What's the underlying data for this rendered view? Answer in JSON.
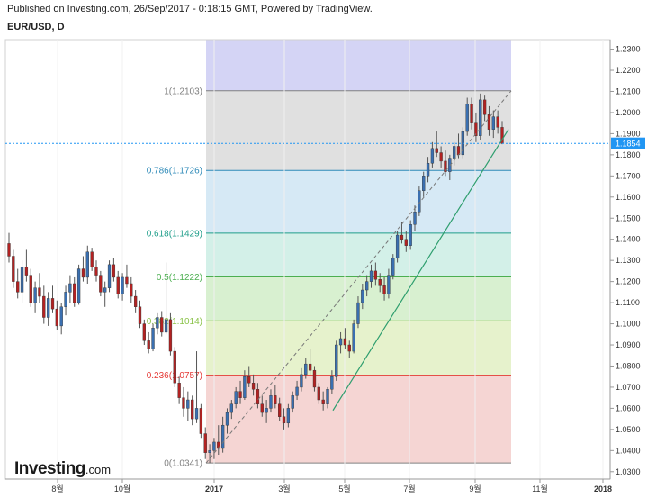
{
  "header": {
    "published": "Published on Investing.com, 26/Sep/2017 - 0:18:15 GMT, Powered by TradingView.",
    "symbol": "EUR/USD, D"
  },
  "logo": {
    "brand": "Investing",
    "suffix": ".com"
  },
  "chart_data": {
    "type": "candlestick",
    "ylim": [
      1.0265,
      1.2345
    ],
    "y_ticks": [
      "1.2300",
      "1.2200",
      "1.2100",
      "1.2000",
      "1.1900",
      "1.1800",
      "1.1700",
      "1.1600",
      "1.1500",
      "1.1400",
      "1.1300",
      "1.1200",
      "1.1100",
      "1.1000",
      "1.0900",
      "1.0800",
      "1.0700",
      "1.0600",
      "1.0500",
      "1.0400",
      "1.0300"
    ],
    "x_ticks": [
      "8월",
      "10월",
      "2017",
      "3월",
      "5월",
      "7월",
      "9월",
      "11월",
      "2018"
    ],
    "current_price": {
      "value": 1.1854,
      "label": "1.1854",
      "color": "#2196f3"
    },
    "fibonacci": {
      "levels": [
        {
          "ratio": "1",
          "price": 1.2103,
          "label": "1(1.2103)",
          "color": "#808080",
          "fill": "#e0e0e0"
        },
        {
          "ratio": "0.786",
          "price": 1.1726,
          "label": "0.786(1.1726)",
          "color": "#2e8ab8",
          "fill": "#d6e9f5"
        },
        {
          "ratio": "0.618",
          "price": 1.1429,
          "label": "0.618(1.1429)",
          "color": "#1f9e8a",
          "fill": "#d3f0e8"
        },
        {
          "ratio": "0.5",
          "price": 1.1222,
          "label": "0.5(1.1222)",
          "color": "#4caf50",
          "fill": "#d8f0d0"
        },
        {
          "ratio": "0.382",
          "price": 1.1014,
          "label": "0.382(1.1014)",
          "color": "#8bc34a",
          "fill": "#e6f2cc"
        },
        {
          "ratio": "0.236",
          "price": 1.0757,
          "label": "0.236(1.0757)",
          "color": "#e53935",
          "fill": "#f5d5d3"
        },
        {
          "ratio": "0",
          "price": 1.0341,
          "label": "0(1.0341)",
          "color": "#808080",
          "fill": ""
        }
      ],
      "extension_fill": "#d4d4f5"
    },
    "trendline": {
      "from": 1.059,
      "to": 1.192,
      "color": "#2e9e6e"
    },
    "fib_diagonal": {
      "from": 1.0341,
      "to": 1.2103,
      "color": "#777777"
    },
    "candles": [
      [
        1.138,
        1.143,
        1.129,
        1.132
      ],
      [
        1.132,
        1.135,
        1.117,
        1.12
      ],
      [
        1.12,
        1.126,
        1.112,
        1.115
      ],
      [
        1.115,
        1.13,
        1.11,
        1.127
      ],
      [
        1.127,
        1.135,
        1.12,
        1.123
      ],
      [
        1.123,
        1.126,
        1.108,
        1.11
      ],
      [
        1.11,
        1.12,
        1.105,
        1.117
      ],
      [
        1.117,
        1.124,
        1.11,
        1.113
      ],
      [
        1.113,
        1.118,
        1.1,
        1.103
      ],
      [
        1.103,
        1.115,
        1.099,
        1.112
      ],
      [
        1.112,
        1.118,
        1.105,
        1.107
      ],
      [
        1.107,
        1.111,
        1.097,
        1.099
      ],
      [
        1.099,
        1.11,
        1.095,
        1.108
      ],
      [
        1.108,
        1.118,
        1.104,
        1.115
      ],
      [
        1.115,
        1.123,
        1.11,
        1.119
      ],
      [
        1.119,
        1.122,
        1.108,
        1.11
      ],
      [
        1.11,
        1.128,
        1.109,
        1.126
      ],
      [
        1.126,
        1.132,
        1.12,
        1.122
      ],
      [
        1.122,
        1.137,
        1.119,
        1.134
      ],
      [
        1.134,
        1.136,
        1.125,
        1.127
      ],
      [
        1.127,
        1.13,
        1.12,
        1.123
      ],
      [
        1.123,
        1.125,
        1.113,
        1.115
      ],
      [
        1.115,
        1.12,
        1.108,
        1.117
      ],
      [
        1.117,
        1.13,
        1.115,
        1.128
      ],
      [
        1.128,
        1.131,
        1.12,
        1.122
      ],
      [
        1.122,
        1.125,
        1.112,
        1.114
      ],
      [
        1.114,
        1.124,
        1.111,
        1.122
      ],
      [
        1.122,
        1.128,
        1.117,
        1.119
      ],
      [
        1.119,
        1.122,
        1.11,
        1.113
      ],
      [
        1.113,
        1.116,
        1.105,
        1.108
      ],
      [
        1.108,
        1.111,
        1.098,
        1.1
      ],
      [
        1.1,
        1.102,
        1.09,
        1.092
      ],
      [
        1.092,
        1.096,
        1.086,
        1.088
      ],
      [
        1.088,
        1.1,
        1.087,
        1.098
      ],
      [
        1.098,
        1.105,
        1.095,
        1.103
      ],
      [
        1.103,
        1.106,
        1.094,
        1.096
      ],
      [
        1.096,
        1.129,
        1.095,
        1.102
      ],
      [
        1.102,
        1.105,
        1.085,
        1.087
      ],
      [
        1.087,
        1.089,
        1.07,
        1.072
      ],
      [
        1.072,
        1.075,
        1.062,
        1.065
      ],
      [
        1.065,
        1.07,
        1.056,
        1.06
      ],
      [
        1.06,
        1.068,
        1.054,
        1.064
      ],
      [
        1.064,
        1.066,
        1.052,
        1.055
      ],
      [
        1.055,
        1.087,
        1.053,
        1.06
      ],
      [
        1.06,
        1.062,
        1.046,
        1.048
      ],
      [
        1.048,
        1.051,
        1.036,
        1.039
      ],
      [
        1.039,
        1.043,
        1.0341,
        1.04
      ],
      [
        1.04,
        1.046,
        1.036,
        1.044
      ],
      [
        1.044,
        1.052,
        1.038,
        1.041
      ],
      [
        1.041,
        1.056,
        1.039,
        1.052
      ],
      [
        1.052,
        1.06,
        1.048,
        1.058
      ],
      [
        1.058,
        1.064,
        1.055,
        1.062
      ],
      [
        1.062,
        1.07,
        1.06,
        1.068
      ],
      [
        1.068,
        1.073,
        1.062,
        1.065
      ],
      [
        1.065,
        1.078,
        1.064,
        1.075
      ],
      [
        1.075,
        1.08,
        1.07,
        1.072
      ],
      [
        1.072,
        1.076,
        1.066,
        1.069
      ],
      [
        1.069,
        1.072,
        1.06,
        1.062
      ],
      [
        1.062,
        1.066,
        1.056,
        1.058
      ],
      [
        1.058,
        1.064,
        1.053,
        1.06
      ],
      [
        1.06,
        1.069,
        1.058,
        1.066
      ],
      [
        1.066,
        1.071,
        1.06,
        1.062
      ],
      [
        1.062,
        1.065,
        1.054,
        1.056
      ],
      [
        1.056,
        1.06,
        1.05,
        1.053
      ],
      [
        1.053,
        1.062,
        1.051,
        1.06
      ],
      [
        1.06,
        1.068,
        1.058,
        1.066
      ],
      [
        1.066,
        1.073,
        1.064,
        1.07
      ],
      [
        1.07,
        1.079,
        1.068,
        1.076
      ],
      [
        1.076,
        1.084,
        1.074,
        1.081
      ],
      [
        1.081,
        1.088,
        1.076,
        1.078
      ],
      [
        1.078,
        1.08,
        1.068,
        1.07
      ],
      [
        1.07,
        1.072,
        1.062,
        1.064
      ],
      [
        1.064,
        1.068,
        1.059,
        1.062
      ],
      [
        1.062,
        1.07,
        1.06,
        1.069
      ],
      [
        1.069,
        1.078,
        1.067,
        1.075
      ],
      [
        1.075,
        1.092,
        1.073,
        1.09
      ],
      [
        1.09,
        1.096,
        1.086,
        1.093
      ],
      [
        1.093,
        1.098,
        1.088,
        1.09
      ],
      [
        1.09,
        1.092,
        1.084,
        1.087
      ],
      [
        1.087,
        1.102,
        1.086,
        1.1
      ],
      [
        1.1,
        1.113,
        1.098,
        1.11
      ],
      [
        1.11,
        1.119,
        1.107,
        1.116
      ],
      [
        1.116,
        1.123,
        1.113,
        1.12
      ],
      [
        1.12,
        1.128,
        1.117,
        1.125
      ],
      [
        1.125,
        1.129,
        1.118,
        1.121
      ],
      [
        1.121,
        1.124,
        1.115,
        1.118
      ],
      [
        1.118,
        1.122,
        1.111,
        1.114
      ],
      [
        1.114,
        1.126,
        1.112,
        1.123
      ],
      [
        1.123,
        1.133,
        1.121,
        1.131
      ],
      [
        1.131,
        1.144,
        1.129,
        1.142
      ],
      [
        1.142,
        1.148,
        1.138,
        1.14
      ],
      [
        1.14,
        1.144,
        1.134,
        1.137
      ],
      [
        1.137,
        1.149,
        1.135,
        1.147
      ],
      [
        1.147,
        1.156,
        1.144,
        1.153
      ],
      [
        1.153,
        1.165,
        1.151,
        1.163
      ],
      [
        1.163,
        1.172,
        1.16,
        1.17
      ],
      [
        1.17,
        1.179,
        1.167,
        1.176
      ],
      [
        1.176,
        1.186,
        1.174,
        1.183
      ],
      [
        1.183,
        1.191,
        1.179,
        1.181
      ],
      [
        1.181,
        1.184,
        1.174,
        1.177
      ],
      [
        1.177,
        1.182,
        1.17,
        1.172
      ],
      [
        1.172,
        1.18,
        1.168,
        1.178
      ],
      [
        1.178,
        1.186,
        1.175,
        1.184
      ],
      [
        1.184,
        1.19,
        1.178,
        1.18
      ],
      [
        1.18,
        1.193,
        1.178,
        1.191
      ],
      [
        1.191,
        1.207,
        1.189,
        1.204
      ],
      [
        1.204,
        1.207,
        1.192,
        1.195
      ],
      [
        1.195,
        1.2,
        1.186,
        1.189
      ],
      [
        1.189,
        1.209,
        1.187,
        1.206
      ],
      [
        1.206,
        1.208,
        1.196,
        1.199
      ],
      [
        1.199,
        1.203,
        1.189,
        1.192
      ],
      [
        1.192,
        1.201,
        1.188,
        1.198
      ],
      [
        1.198,
        1.201,
        1.19,
        1.193
      ],
      [
        1.193,
        1.196,
        1.185,
        1.1854
      ]
    ]
  }
}
